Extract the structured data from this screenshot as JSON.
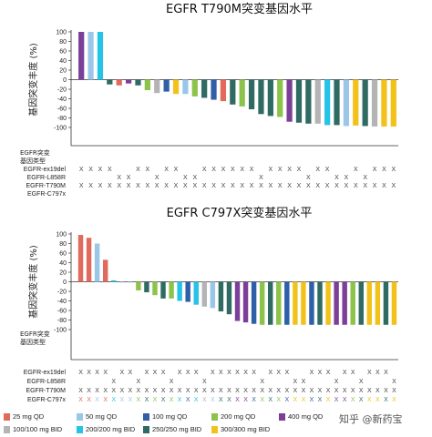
{
  "colors": {
    "25 mg QD": "#e06a5c",
    "50 mg QD": "#9cc6e8",
    "100 mg QD": "#2e5fa8",
    "200 mg QD": "#8cc34a",
    "400 mg QD": "#7b3f98",
    "100/100 mg BID": "#b4b4b4",
    "200/200 mg BID": "#26c3e8",
    "250/250 mg BID": "#2f6b62",
    "300/300 mg BID": "#f2c21b",
    "mutation_mark": "#444444"
  },
  "legend": {
    "items": [
      {
        "label": "25 mg QD",
        "key": "25 mg QD"
      },
      {
        "label": "50 mg QD",
        "key": "50 mg QD"
      },
      {
        "label": "100 mg QD",
        "key": "100 mg QD"
      },
      {
        "label": "200 mg QD",
        "key": "200 mg QD"
      },
      {
        "label": "400 mg QD",
        "key": "400 mg QD"
      },
      {
        "label": "100/100 mg BID",
        "key": "100/100 mg BID"
      },
      {
        "label": "200/200 mg BID",
        "key": "200/200 mg BID"
      },
      {
        "label": "250/250 mg BID",
        "key": "250/250 mg BID"
      },
      {
        "label": "300/300 mg BID",
        "key": "300/300 mg BID"
      }
    ]
  },
  "watermark": "知乎 @新药宝",
  "chart_data": [
    {
      "type": "bar",
      "title": "EGFR T790M突变基因水平",
      "ylabel": "基因突变丰度 (%)",
      "ylim": [
        -100,
        100
      ],
      "yticks": [
        100,
        80,
        60,
        40,
        20,
        0,
        -20,
        -40,
        -60,
        -80,
        -100
      ],
      "grid": false,
      "values": [
        100,
        100,
        100,
        -10,
        -12,
        -8,
        -12,
        -22,
        -28,
        -25,
        -30,
        -30,
        -35,
        -38,
        -42,
        -45,
        -52,
        -56,
        -62,
        -72,
        -76,
        -78,
        -88,
        -90,
        -92,
        -92,
        -95,
        -95,
        -97,
        -96,
        -97,
        -98,
        -98,
        -98
      ],
      "dose": [
        "400 mg QD",
        "50 mg QD",
        "200/200 mg BID",
        "250/250 mg BID",
        "25 mg QD",
        "400 mg QD",
        "250/250 mg BID",
        "200 mg QD",
        "100/100 mg BID",
        "100 mg QD",
        "300/300 mg BID",
        "50 mg QD",
        "200 mg QD",
        "250/250 mg BID",
        "100 mg QD",
        "25 mg QD",
        "250/250 mg BID",
        "200 mg QD",
        "250/250 mg BID",
        "250/250 mg BID",
        "250/250 mg BID",
        "200 mg QD",
        "400 mg QD",
        "250/250 mg BID",
        "250/250 mg BID",
        "100/100 mg BID",
        "200/200 mg BID",
        "250/250 mg BID",
        "50 mg QD",
        "300/300 mg BID",
        "250/250 mg BID",
        "100/100 mg BID",
        "300/300 mg BID",
        "300/300 mg BID"
      ],
      "mutation_header": "EGFR突变\n基因类型",
      "mutation_rows": [
        {
          "label": "EGFR-ex19del",
          "marks": [
            1,
            1,
            1,
            1,
            0,
            0,
            1,
            1,
            0,
            1,
            1,
            0,
            0,
            1,
            1,
            1,
            1,
            1,
            1,
            0,
            1,
            1,
            1,
            1,
            0,
            1,
            1,
            0,
            0,
            1,
            0,
            1,
            1,
            1
          ]
        },
        {
          "label": "EGFR-L858R",
          "marks": [
            0,
            0,
            0,
            0,
            1,
            1,
            0,
            0,
            1,
            0,
            0,
            1,
            1,
            0,
            0,
            0,
            0,
            0,
            0,
            1,
            0,
            0,
            0,
            0,
            1,
            0,
            0,
            1,
            1,
            0,
            1,
            0,
            0,
            0
          ]
        },
        {
          "label": "EGFR-T790M",
          "marks": [
            1,
            1,
            1,
            1,
            1,
            1,
            1,
            1,
            1,
            1,
            1,
            1,
            1,
            1,
            1,
            1,
            1,
            1,
            1,
            1,
            1,
            1,
            1,
            1,
            1,
            1,
            1,
            1,
            1,
            1,
            1,
            1,
            1,
            1
          ]
        },
        {
          "label": "EGFR-C797x",
          "marks": [
            0,
            0,
            0,
            0,
            0,
            0,
            0,
            0,
            0,
            0,
            0,
            0,
            0,
            0,
            0,
            0,
            0,
            0,
            0,
            0,
            0,
            0,
            0,
            0,
            0,
            0,
            0,
            0,
            0,
            0,
            0,
            0,
            0,
            0
          ]
        }
      ]
    },
    {
      "type": "bar",
      "title": "EGFR C797X突变基因水平",
      "ylabel": "基因突变丰度 (%)",
      "ylim": [
        -100,
        100
      ],
      "yticks": [
        100,
        80,
        60,
        40,
        20,
        0,
        -20,
        -40,
        -60,
        -80,
        -100
      ],
      "grid": false,
      "values": [
        98,
        92,
        80,
        46,
        3,
        0,
        0,
        -18,
        -22,
        -28,
        -35,
        -35,
        -40,
        -42,
        -48,
        -52,
        -55,
        -62,
        -68,
        -82,
        -85,
        -88,
        -90,
        -90,
        -90,
        -90,
        -90,
        -90,
        -90,
        -90,
        -90,
        -90,
        -90,
        -90,
        -90,
        -90,
        -90,
        -90,
        -90
      ],
      "dose": [
        "25 mg QD",
        "25 mg QD",
        "50 mg QD",
        "25 mg QD",
        "200/200 mg BID",
        "50 mg QD",
        "50 mg QD",
        "200 mg QD",
        "250/250 mg BID",
        "200 mg QD",
        "250/250 mg BID",
        "200 mg QD",
        "200/200 mg BID",
        "100 mg QD",
        "200/200 mg BID",
        "100/100 mg BID",
        "50 mg QD",
        "250/250 mg BID",
        "250/250 mg BID",
        "400 mg QD",
        "400 mg QD",
        "100 mg QD",
        "200 mg QD",
        "250/250 mg BID",
        "200 mg QD",
        "100 mg QD",
        "300/300 mg BID",
        "300/300 mg BID",
        "100 mg QD",
        "250/250 mg BID",
        "300/300 mg BID",
        "400 mg QD",
        "400 mg QD",
        "200 mg QD",
        "250/250 mg BID",
        "300/300 mg BID",
        "300/300 mg BID",
        "250/250 mg BID",
        "300/300 mg BID"
      ],
      "mutation_header": "EGFR突变\n基因类型",
      "mutation_rows": [
        {
          "label": "EGFR-ex19del",
          "marks": [
            1,
            1,
            1,
            1,
            0,
            1,
            1,
            0,
            1,
            1,
            1,
            0,
            1,
            1,
            1,
            0,
            1,
            1,
            1,
            1,
            1,
            1,
            0,
            1,
            1,
            1,
            0,
            0,
            1,
            1,
            1,
            0,
            1,
            1,
            0,
            1,
            1,
            1,
            0
          ]
        },
        {
          "label": "EGFR-L858R",
          "marks": [
            0,
            0,
            0,
            0,
            1,
            0,
            0,
            1,
            0,
            0,
            0,
            1,
            0,
            0,
            0,
            1,
            0,
            0,
            0,
            0,
            0,
            0,
            1,
            0,
            0,
            0,
            1,
            1,
            0,
            0,
            0,
            1,
            0,
            0,
            1,
            0,
            0,
            0,
            1
          ]
        },
        {
          "label": "EGFR-T790M",
          "marks": [
            1,
            1,
            1,
            1,
            1,
            1,
            1,
            1,
            1,
            1,
            1,
            1,
            1,
            1,
            1,
            1,
            1,
            1,
            1,
            1,
            1,
            1,
            1,
            1,
            1,
            1,
            1,
            1,
            1,
            1,
            1,
            1,
            1,
            1,
            1,
            1,
            1,
            1,
            1
          ]
        },
        {
          "label": "EGFR-C797x",
          "marks": [
            1,
            1,
            1,
            1,
            1,
            1,
            1,
            1,
            1,
            1,
            1,
            1,
            1,
            1,
            1,
            1,
            1,
            1,
            1,
            1,
            1,
            1,
            1,
            1,
            1,
            1,
            1,
            1,
            1,
            1,
            1,
            1,
            1,
            1,
            1,
            1,
            1,
            1,
            1
          ]
        }
      ]
    }
  ]
}
